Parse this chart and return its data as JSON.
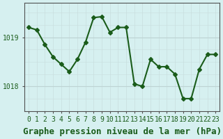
{
  "x": [
    0,
    1,
    2,
    3,
    4,
    5,
    6,
    7,
    8,
    9,
    10,
    11,
    12,
    13,
    14,
    15,
    16,
    17,
    18,
    19,
    20,
    21,
    22,
    23
  ],
  "y": [
    1019.2,
    1019.15,
    1018.85,
    1018.6,
    1018.45,
    1018.3,
    1018.55,
    1018.9,
    1019.4,
    1019.42,
    1019.1,
    1019.2,
    1019.2,
    1018.05,
    1018.0,
    1018.55,
    1018.4,
    1018.4,
    1018.25,
    1017.75,
    1017.75,
    1018.35,
    1018.65,
    1018.65
  ],
  "line_color": "#1a5c1a",
  "marker": "D",
  "marker_size": 3,
  "linewidth": 1.5,
  "bg_color": "#d6f0f0",
  "grid_color_major": "#b0c8c8",
  "grid_color_minor": "#c8dede",
  "xlabel": "Graphe pression niveau de la mer (hPa)",
  "xlabel_fontsize": 9,
  "xlabel_color": "#1a5c1a",
  "yticks": [
    1018,
    1019
  ],
  "ylim": [
    1017.5,
    1019.7
  ],
  "xlim": [
    -0.5,
    23.5
  ],
  "tick_label_color": "#1a5c1a",
  "tick_fontsize": 7,
  "axis_color": "#505050"
}
